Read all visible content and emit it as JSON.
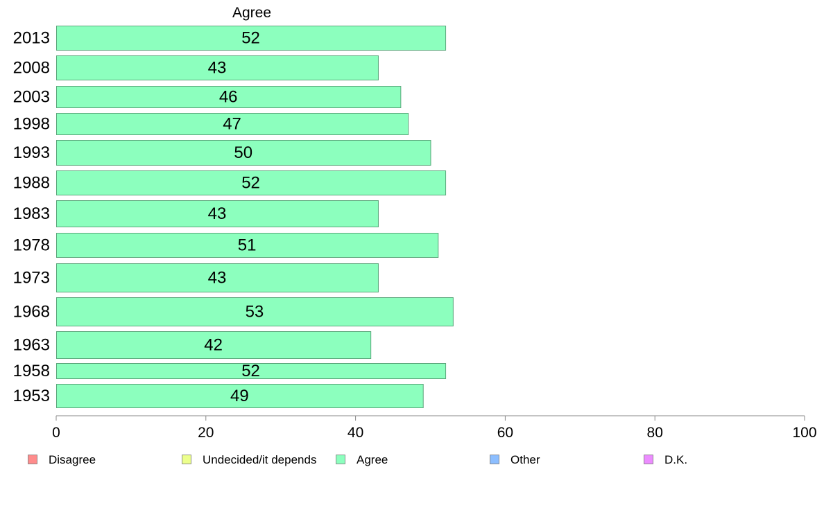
{
  "chart_data": {
    "type": "bar",
    "orientation": "horizontal",
    "title": "Agree",
    "categories": [
      "2013",
      "2008",
      "2003",
      "1998",
      "1993",
      "1988",
      "1983",
      "1978",
      "1973",
      "1968",
      "1963",
      "1958",
      "1953"
    ],
    "series": [
      {
        "name": "Agree",
        "values": [
          52,
          43,
          46,
          47,
          50,
          52,
          43,
          51,
          43,
          53,
          42,
          52,
          49
        ]
      }
    ],
    "data_labels": [
      "52",
      "43",
      "46",
      "47",
      "50",
      "52",
      "43",
      "51",
      "43",
      "53",
      "42",
      "52",
      "49"
    ],
    "xlim": [
      0,
      100
    ],
    "xticks": [
      0,
      20,
      40,
      60,
      80,
      100
    ],
    "xtick_labels": [
      "0",
      "20",
      "40",
      "60",
      "80",
      "100"
    ],
    "grid": false,
    "legend_position": "bottom",
    "legend": [
      {
        "label": "Disagree",
        "color": "#ff8c8c"
      },
      {
        "label": "Undecided/it depends",
        "color": "#ecff8c"
      },
      {
        "label": "Agree",
        "color": "#8cffbe"
      },
      {
        "label": "Other",
        "color": "#8cbeff"
      },
      {
        "label": "D.K.",
        "color": "#ec8cff"
      }
    ],
    "bar_color": "#8cffbe",
    "bar_stroke": "#5aa57a"
  }
}
